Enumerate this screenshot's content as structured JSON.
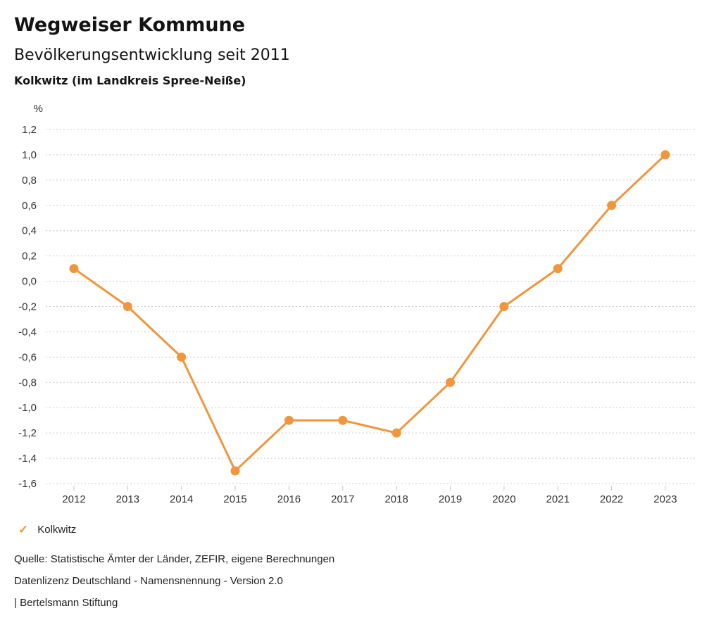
{
  "header": {
    "title": "Wegweiser Kommune",
    "subtitle": "Bevölkerungsentwicklung seit 2011",
    "location": "Kolkwitz (im Landkreis Spree-Neiße)"
  },
  "colors": {
    "accent": "#F0963C",
    "grid": "#C9C9C9",
    "text": "#141414",
    "axis_text": "#333333"
  },
  "chart_data": {
    "type": "line",
    "title": "Bevölkerungsentwicklung seit 2011",
    "xlabel": "",
    "ylabel": "%",
    "categories": [
      "2012",
      "2013",
      "2014",
      "2015",
      "2016",
      "2017",
      "2018",
      "2019",
      "2020",
      "2021",
      "2022",
      "2023"
    ],
    "series": [
      {
        "name": "Kolkwitz",
        "values": [
          0.1,
          -0.2,
          -0.6,
          -1.5,
          -1.1,
          -1.1,
          -1.2,
          -0.8,
          -0.2,
          0.1,
          0.6,
          1.0
        ]
      }
    ],
    "ylim": [
      -1.6,
      1.2
    ],
    "ytick_step": 0.2,
    "decimal_separator": ",",
    "grid": "dotted-horizontal",
    "legend_position": "bottom-left"
  },
  "legend": {
    "check_glyph": "✓",
    "label": "Kolkwitz"
  },
  "footer": {
    "source": "Quelle: Statistische Ämter der Länder, ZEFIR, eigene Berechnungen",
    "license": "Datenlizenz Deutschland - Namensnennung - Version 2.0",
    "attribution": "| Bertelsmann Stiftung"
  }
}
